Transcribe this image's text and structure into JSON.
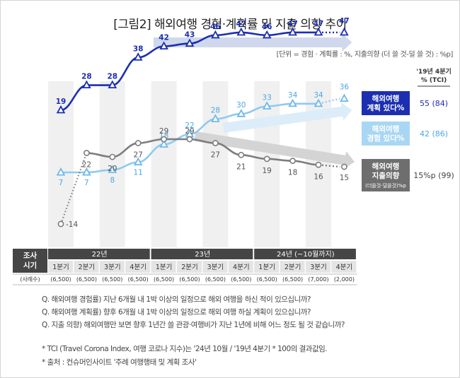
{
  "title": "[그림2] 해외여행 경험·계획률 및 지출 의향 추이",
  "unit_note": "[단위 = 경험 · 계획률 : %, 지출의향 (더 쓸 것-덜 쓸 것) : %p]",
  "colors": {
    "plan": "#1c2fb0",
    "experience": "#8fcaf0",
    "spending": "#7d7d7d",
    "band": "#f0f0f0",
    "header_dark": "#454545",
    "plan_box": "#1c2fb0",
    "exp_box": "#a9d7f3",
    "spend_box": "#6e6e6e"
  },
  "chart_data": {
    "type": "line",
    "categories": [
      "22년 1분기",
      "22년 2분기",
      "22년 3분기",
      "22년 4분기",
      "23년 1분기",
      "23년 2분기",
      "23년 3분기",
      "23년 4분기",
      "24년 1분기",
      "24년 2분기",
      "24년 3분기",
      "24년 4분기"
    ],
    "series": [
      {
        "key": "plan",
        "name": "해외여행 계획 있다%",
        "values": [
          19,
          28,
          28,
          38,
          42,
          43,
          46,
          47,
          46,
          47,
          47,
          47
        ],
        "projected_from_index": 10
      },
      {
        "key": "experience",
        "name": "해외여행 경험 있다%",
        "values": [
          7,
          7,
          8,
          11,
          18,
          22,
          28,
          30,
          33,
          34,
          34,
          36
        ],
        "projected_from_index": 10
      },
      {
        "key": "spending",
        "name": "해외여행 지출의향 (더쓸것-덜쓸것)%p",
        "values": [
          -14,
          22,
          20,
          27,
          29,
          29,
          27,
          21,
          19,
          18,
          16,
          15
        ],
        "projected_from_index": 10,
        "dotted_to_index": 1
      }
    ],
    "series_labels": [
      {
        "key": "plan",
        "lines": [
          "해외여행",
          "계획 있다%"
        ],
        "baseline": "55 (84)"
      },
      {
        "key": "experience",
        "lines": [
          "해외여행",
          "경험 있다%"
        ],
        "baseline": "42 (86)"
      },
      {
        "key": "spending",
        "lines": [
          "해외여행",
          "지출의향"
        ],
        "sub": "(더쓸것-덜쓸것)%p",
        "baseline": "15%p (99)"
      }
    ],
    "baseline_header": [
      "'19년 4분기",
      "% (TCI)"
    ],
    "axis": {
      "row_header": [
        "조사",
        "시기"
      ],
      "years": [
        {
          "label": "22년",
          "span": 4
        },
        {
          "label": "23년",
          "span": 4
        },
        {
          "label": "24년 (~10월까지)",
          "span": 4
        }
      ],
      "quarters": [
        "1분기",
        "2분기",
        "3분기",
        "4분기",
        "1분기",
        "2분기",
        "3분기",
        "4분기",
        "1분기",
        "2분기",
        "3분기",
        "4분기"
      ],
      "sample_header": "(사례수)",
      "samples": [
        "(6,500)",
        "(6,500)",
        "(6,500)",
        "(6,500)",
        "(6,500)",
        "(6,500)",
        "(6,500)",
        "(6,500)",
        "(6,500)",
        "(6,500)",
        "(7,000)",
        "(2,000)"
      ]
    }
  },
  "questions": [
    "Q. 해외여행 경험률) 지난 6개월 내 1박 이상의 일정으로 해외 여행을 하신 적이 있으십니까?",
    "Q. 해외여행 계획률) 향후 6개월 내 1박 이상의 일정으로 해외 여행 하실 계획이 있으십니까?",
    "Q. 지출 의향) 해외여행만 보면 향후 1년간 쓸 관광·여행비가 지난 1년에 비해 어느 정도 될 것 같습니까?"
  ],
  "notes": [
    "* TCI (Travel Corona Index, 여행 코로나 지수)는 '24년 10월 / '19년 4분기 * 100의 결과값임.",
    "* 출처 : 컨슈머인사이트 '주례 여행행태 및 계획 조사'"
  ]
}
